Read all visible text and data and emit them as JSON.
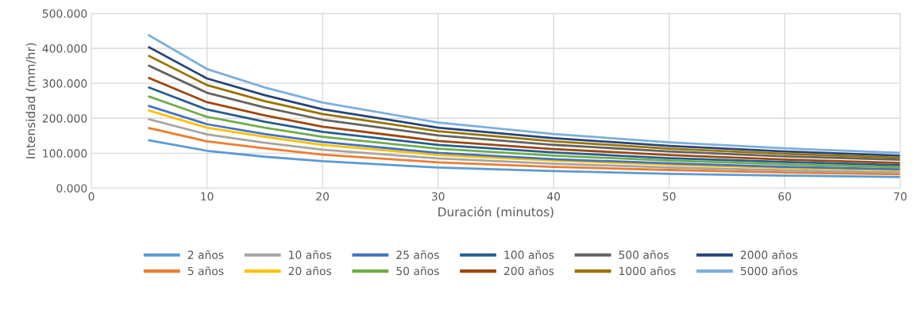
{
  "chart_data": {
    "type": "line",
    "xlabel": "Duración (minutos)",
    "ylabel": "Intensidad (mm/hr)",
    "x": [
      5,
      10,
      15,
      20,
      30,
      40,
      50,
      60,
      70
    ],
    "series": [
      {
        "name": "2 años",
        "color": "#5b9bd5",
        "values": [
          137,
          107,
          90,
          77,
          59,
          49,
          41,
          36,
          32
        ]
      },
      {
        "name": "5 años",
        "color": "#ed7d31",
        "values": [
          172,
          134,
          114,
          96,
          74,
          61,
          52,
          45,
          40
        ]
      },
      {
        "name": "10 años",
        "color": "#a5a5a5",
        "values": [
          197,
          154,
          130,
          110,
          85,
          70,
          59,
          51,
          45
        ]
      },
      {
        "name": "20 años",
        "color": "#ffc000",
        "values": [
          222,
          173,
          147,
          124,
          95,
          79,
          67,
          58,
          51
        ]
      },
      {
        "name": "25 años",
        "color": "#4472c4",
        "values": [
          235,
          183,
          155,
          132,
          101,
          83,
          71,
          61,
          54
        ]
      },
      {
        "name": "50 años",
        "color": "#70ad47",
        "values": [
          262,
          204,
          173,
          147,
          113,
          93,
          79,
          68,
          60
        ]
      },
      {
        "name": "100 años",
        "color": "#255e91",
        "values": [
          288,
          225,
          190,
          161,
          124,
          102,
          86,
          75,
          66
        ]
      },
      {
        "name": "200 años",
        "color": "#9e480e",
        "values": [
          315,
          246,
          208,
          176,
          135,
          112,
          95,
          82,
          72
        ]
      },
      {
        "name": "500 años",
        "color": "#636363",
        "values": [
          350,
          273,
          231,
          196,
          151,
          124,
          105,
          91,
          81
        ]
      },
      {
        "name": "1000 años",
        "color": "#997300",
        "values": [
          378,
          295,
          249,
          212,
          163,
          134,
          113,
          98,
          87
        ]
      },
      {
        "name": "2000 años",
        "color": "#264478",
        "values": [
          403,
          314,
          266,
          226,
          173,
          143,
          121,
          105,
          93
        ]
      },
      {
        "name": "5000 años",
        "color": "#7cafdd",
        "values": [
          437,
          341,
          288,
          245,
          188,
          155,
          131,
          114,
          101
        ]
      }
    ],
    "xlim": [
      0,
      70
    ],
    "xticks": [
      0,
      10,
      20,
      30,
      40,
      50,
      60,
      70
    ],
    "ylim": [
      0,
      500
    ],
    "yticks": [
      {
        "value": 0,
        "label": "0.000"
      },
      {
        "value": 100,
        "label": "100.000"
      },
      {
        "value": 200,
        "label": "200.000"
      },
      {
        "value": 300,
        "label": "300.000"
      },
      {
        "value": 400,
        "label": "400.000"
      },
      {
        "value": 500,
        "label": "500.000"
      }
    ],
    "grid": true,
    "legend": "bottom",
    "marker": "none",
    "line_style": "solid"
  }
}
